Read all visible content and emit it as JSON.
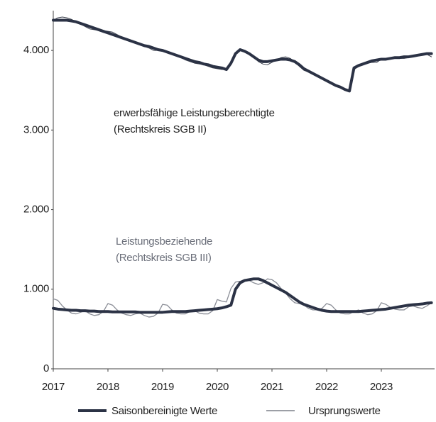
{
  "chart_data": {
    "type": "line",
    "categories": [
      "2017",
      null,
      null,
      null,
      null,
      null,
      null,
      null,
      null,
      null,
      null,
      null,
      "2018",
      null,
      null,
      null,
      null,
      null,
      null,
      null,
      null,
      null,
      null,
      null,
      "2019",
      null,
      null,
      null,
      null,
      null,
      null,
      null,
      null,
      null,
      null,
      null,
      "2020",
      null,
      null,
      null,
      null,
      null,
      null,
      null,
      null,
      null,
      null,
      null,
      "2021",
      null,
      null,
      null,
      null,
      null,
      null,
      null,
      null,
      null,
      null,
      null,
      "2022",
      null,
      null,
      null,
      null,
      null,
      null,
      null,
      null,
      null,
      null,
      null,
      "2023",
      null,
      null,
      null,
      null,
      null,
      null,
      null,
      null,
      null,
      null,
      null
    ],
    "ylim": [
      0,
      4500
    ],
    "yticks": [
      0,
      {
        "value": 1000,
        "label": "1.000"
      },
      {
        "value": 2000,
        "label": "2.000"
      },
      {
        "value": 3000,
        "label": "3.000"
      },
      {
        "value": 4000,
        "label": "4.000"
      }
    ],
    "grid": false,
    "legend": "bottom",
    "annotations": [
      {
        "text": "erwerbsfähige Leistungsberechtigte",
        "color": "#222222"
      },
      {
        "text": "(Rechtskreis SGB II)",
        "color": "#222222"
      },
      {
        "text": "Leistungsbeziehende",
        "color": "#6b6f7a"
      },
      {
        "text": "(Rechtskreis SGB III)",
        "color": "#6b6f7a"
      }
    ],
    "series": [
      {
        "name": "Saisonbereinigte Werte",
        "color": "#2b3245",
        "width": 4,
        "values": [
          4380,
          4380,
          4380,
          4380,
          4370,
          4360,
          4340,
          4320,
          4300,
          4280,
          4260,
          4240,
          4220,
          4200,
          4180,
          4160,
          4140,
          4120,
          4100,
          4080,
          4060,
          4050,
          4030,
          4010,
          4000,
          3980,
          3960,
          3940,
          3920,
          3900,
          3880,
          3860,
          3850,
          3830,
          3820,
          3800,
          3790,
          3780,
          3760,
          3840,
          3960,
          4010,
          3990,
          3960,
          3920,
          3880,
          3860,
          3860,
          3870,
          3880,
          3890,
          3890,
          3880,
          3860,
          3820,
          3770,
          3740,
          3710,
          3680,
          3650,
          3620,
          3590,
          3560,
          3540,
          3510,
          3490,
          3780,
          3810,
          3830,
          3850,
          3870,
          3880,
          3890,
          3890,
          3900,
          3910,
          3910,
          3920,
          3920,
          3930,
          3940,
          3950,
          3960,
          3960
        ]
      },
      {
        "name": "Ursprungswerte",
        "color": "#3a3f4c",
        "width": 1,
        "values": [
          4380,
          4410,
          4420,
          4410,
          4390,
          4360,
          4330,
          4300,
          4270,
          4260,
          4250,
          4250,
          4240,
          4230,
          4200,
          4170,
          4140,
          4120,
          4100,
          4070,
          4050,
          4030,
          4000,
          4000,
          4010,
          3990,
          3960,
          3940,
          3910,
          3880,
          3860,
          3840,
          3830,
          3820,
          3800,
          3780,
          3770,
          3760,
          3760,
          3830,
          3960,
          4000,
          3990,
          3970,
          3930,
          3860,
          3830,
          3820,
          3850,
          3880,
          3910,
          3920,
          3900,
          3860,
          3800,
          3750,
          3730,
          3700,
          3670,
          3640,
          3620,
          3600,
          3570,
          3540,
          3510,
          3500,
          3760,
          3800,
          3830,
          3840,
          3850,
          3850,
          3890,
          3900,
          3900,
          3900,
          3900,
          3900,
          3910,
          3930,
          3940,
          3950,
          3950,
          3920
        ]
      },
      {
        "name": null,
        "color": "#2b3245",
        "width": 4,
        "values": [
          760,
          750,
          745,
          740,
          735,
          735,
          730,
          730,
          725,
          725,
          720,
          720,
          720,
          715,
          715,
          715,
          715,
          715,
          715,
          710,
          710,
          710,
          710,
          710,
          710,
          715,
          720,
          720,
          720,
          720,
          725,
          730,
          735,
          740,
          745,
          750,
          755,
          765,
          780,
          800,
          1000,
          1080,
          1110,
          1120,
          1130,
          1130,
          1110,
          1080,
          1050,
          1020,
          990,
          960,
          920,
          880,
          840,
          810,
          790,
          770,
          750,
          735,
          725,
          720,
          720,
          720,
          720,
          720,
          720,
          720,
          725,
          730,
          735,
          740,
          745,
          750,
          760,
          770,
          780,
          790,
          800,
          805,
          810,
          815,
          825,
          830
        ]
      },
      {
        "name": null,
        "color": "#8a8d96",
        "width": 1.3,
        "values": [
          880,
          860,
          790,
          740,
          700,
          690,
          710,
          730,
          690,
          670,
          680,
          720,
          820,
          800,
          740,
          700,
          680,
          670,
          690,
          700,
          670,
          650,
          660,
          700,
          810,
          800,
          740,
          700,
          690,
          690,
          720,
          730,
          700,
          690,
          690,
          730,
          870,
          850,
          840,
          1010,
          1090,
          1100,
          1120,
          1110,
          1080,
          1060,
          1080,
          1130,
          1120,
          1080,
          1010,
          950,
          880,
          830,
          820,
          800,
          760,
          740,
          740,
          760,
          820,
          800,
          740,
          700,
          690,
          690,
          720,
          740,
          700,
          680,
          690,
          730,
          830,
          810,
          770,
          750,
          740,
          740,
          780,
          790,
          770,
          760,
          790,
          830
        ]
      }
    ]
  }
}
